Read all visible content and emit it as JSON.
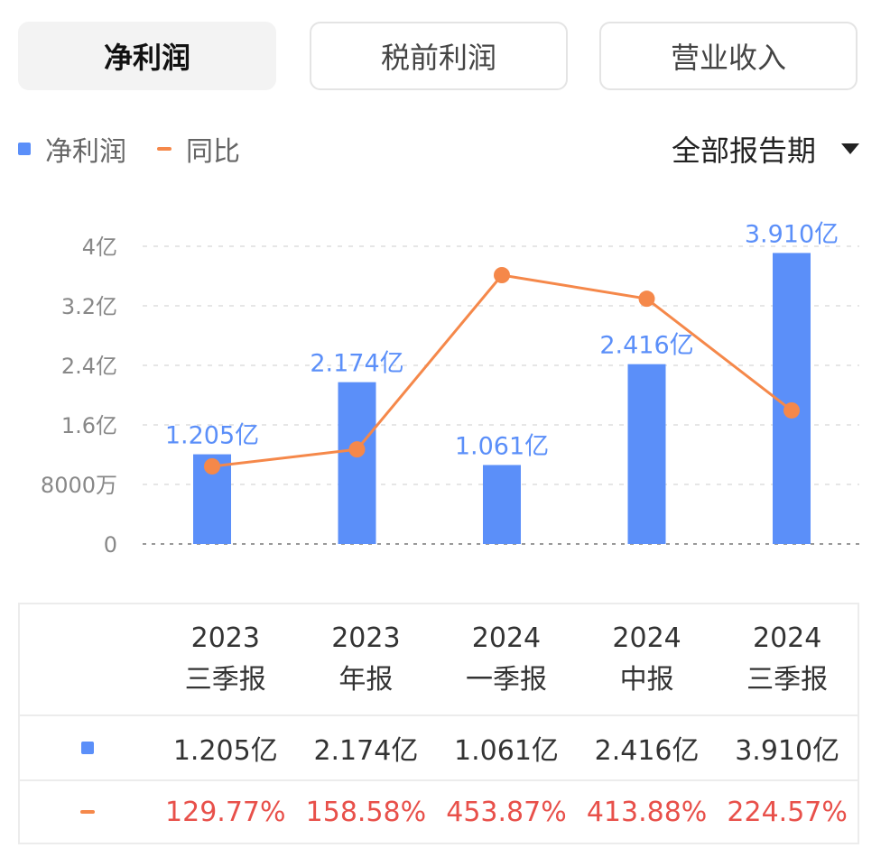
{
  "tabs": [
    {
      "label": "净利润",
      "active": true
    },
    {
      "label": "税前利润",
      "active": false
    },
    {
      "label": "营业收入",
      "active": false
    }
  ],
  "legend": {
    "bar_label": "净利润",
    "line_label": "同比"
  },
  "period_select": {
    "value": "全部报告期"
  },
  "colors": {
    "bar": "#5b8ff9",
    "line": "#f5884a",
    "growth_text": "#e8504a",
    "grid": "#dddddd"
  },
  "chart_data": {
    "type": "bar",
    "title": "",
    "xlabel": "",
    "ylabel": "",
    "ylim": [
      0,
      4
    ],
    "y_ticks": [
      {
        "value": 0,
        "label": "0"
      },
      {
        "value": 0.8,
        "label": "8000万"
      },
      {
        "value": 1.6,
        "label": "1.6亿"
      },
      {
        "value": 2.4,
        "label": "2.4亿"
      },
      {
        "value": 3.2,
        "label": "3.2亿"
      },
      {
        "value": 4.0,
        "label": "4亿"
      }
    ],
    "grid": true,
    "legend_position": "top-left",
    "categories": [
      "2023 三季报",
      "2023 年报",
      "2024 一季报",
      "2024 中报",
      "2024 三季报"
    ],
    "series": [
      {
        "name": "净利润",
        "type": "bar",
        "values": [
          1.205,
          2.174,
          1.061,
          2.416,
          3.91
        ],
        "labels": [
          "1.205亿",
          "2.174亿",
          "1.061亿",
          "2.416亿",
          "3.910亿"
        ]
      },
      {
        "name": "同比",
        "type": "line",
        "values": [
          129.77,
          158.58,
          453.87,
          413.88,
          224.57
        ]
      }
    ]
  },
  "table": {
    "columns": [
      {
        "year": "2023",
        "period": "三季报"
      },
      {
        "year": "2023",
        "period": "年报"
      },
      {
        "year": "2024",
        "period": "一季报"
      },
      {
        "year": "2024",
        "period": "中报"
      },
      {
        "year": "2024",
        "period": "三季报"
      }
    ],
    "values": [
      "1.205亿",
      "2.174亿",
      "1.061亿",
      "2.416亿",
      "3.910亿"
    ],
    "growth": [
      "129.77%",
      "158.58%",
      "453.87%",
      "413.88%",
      "224.57%"
    ]
  }
}
